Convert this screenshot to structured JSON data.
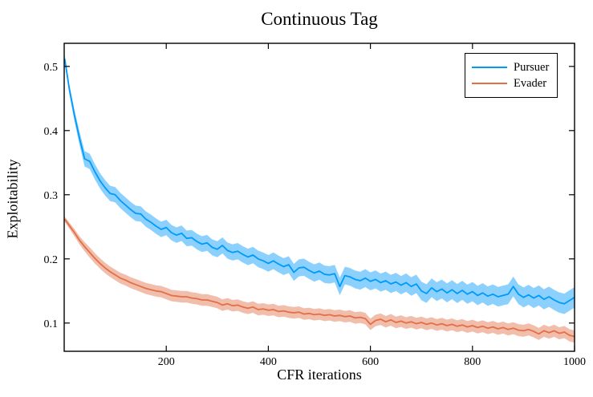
{
  "figure": {
    "title": "Continuous Tag",
    "xlabel": "CFR iterations",
    "ylabel": "Exploitability"
  },
  "legend": {
    "items": [
      {
        "label": "Pursuer",
        "color": "#009AFA"
      },
      {
        "label": "Evader",
        "color": "#E36F47"
      }
    ]
  },
  "chart_data": {
    "type": "line",
    "title": "Continuous Tag",
    "xlabel": "CFR iterations",
    "ylabel": "Exploitability",
    "xlim": [
      0,
      1000
    ],
    "ylim": [
      0.056,
      0.536
    ],
    "xticks": [
      200,
      400,
      600,
      800,
      1000
    ],
    "yticks": [
      0.1,
      0.2,
      0.3,
      0.4,
      0.5
    ],
    "grid": false,
    "background": "#FFFFFF",
    "axis_color": "#000000",
    "legend_position": "top-right",
    "x": [
      1,
      10,
      20,
      30,
      40,
      50,
      60,
      70,
      80,
      90,
      100,
      110,
      120,
      130,
      140,
      150,
      160,
      170,
      180,
      190,
      200,
      210,
      220,
      230,
      240,
      250,
      260,
      270,
      280,
      290,
      300,
      310,
      320,
      330,
      340,
      350,
      360,
      370,
      380,
      390,
      400,
      410,
      420,
      430,
      440,
      450,
      460,
      470,
      480,
      490,
      500,
      510,
      520,
      530,
      540,
      550,
      560,
      570,
      580,
      590,
      600,
      610,
      620,
      630,
      640,
      650,
      660,
      670,
      680,
      690,
      700,
      710,
      720,
      730,
      740,
      750,
      760,
      770,
      780,
      790,
      800,
      810,
      820,
      830,
      840,
      850,
      860,
      870,
      880,
      890,
      900,
      910,
      920,
      930,
      940,
      950,
      960,
      970,
      980,
      990,
      1000
    ],
    "series": [
      {
        "name": "Pursuer",
        "color": "#009AFA",
        "band_alpha": 0.45,
        "values": [
          0.512,
          0.465,
          0.424,
          0.388,
          0.356,
          0.352,
          0.336,
          0.322,
          0.311,
          0.302,
          0.3,
          0.291,
          0.284,
          0.277,
          0.271,
          0.27,
          0.262,
          0.257,
          0.251,
          0.246,
          0.249,
          0.241,
          0.237,
          0.24,
          0.232,
          0.233,
          0.227,
          0.223,
          0.225,
          0.218,
          0.215,
          0.221,
          0.213,
          0.21,
          0.212,
          0.207,
          0.203,
          0.206,
          0.2,
          0.197,
          0.193,
          0.197,
          0.192,
          0.188,
          0.191,
          0.179,
          0.186,
          0.187,
          0.182,
          0.178,
          0.181,
          0.176,
          0.175,
          0.177,
          0.157,
          0.174,
          0.172,
          0.168,
          0.166,
          0.17,
          0.165,
          0.168,
          0.163,
          0.166,
          0.161,
          0.164,
          0.159,
          0.163,
          0.157,
          0.161,
          0.15,
          0.146,
          0.155,
          0.149,
          0.153,
          0.147,
          0.152,
          0.146,
          0.151,
          0.145,
          0.149,
          0.143,
          0.147,
          0.142,
          0.145,
          0.141,
          0.143,
          0.145,
          0.157,
          0.145,
          0.14,
          0.144,
          0.139,
          0.143,
          0.137,
          0.141,
          0.136,
          0.132,
          0.13,
          0.135,
          0.14
        ],
        "band_halfwidth_anchors": [
          [
            1,
            0.006
          ],
          [
            40,
            0.012
          ],
          [
            200,
            0.012
          ],
          [
            400,
            0.013
          ],
          [
            600,
            0.014
          ],
          [
            800,
            0.015
          ],
          [
            1000,
            0.016
          ]
        ]
      },
      {
        "name": "Evader",
        "color": "#E36F47",
        "band_alpha": 0.45,
        "values": [
          0.262,
          0.252,
          0.241,
          0.229,
          0.219,
          0.21,
          0.201,
          0.193,
          0.186,
          0.18,
          0.175,
          0.17,
          0.167,
          0.163,
          0.16,
          0.157,
          0.154,
          0.152,
          0.15,
          0.149,
          0.146,
          0.143,
          0.142,
          0.141,
          0.141,
          0.139,
          0.138,
          0.136,
          0.136,
          0.134,
          0.132,
          0.128,
          0.13,
          0.127,
          0.128,
          0.125,
          0.123,
          0.125,
          0.121,
          0.122,
          0.12,
          0.121,
          0.118,
          0.119,
          0.117,
          0.116,
          0.117,
          0.114,
          0.115,
          0.113,
          0.114,
          0.112,
          0.113,
          0.111,
          0.112,
          0.11,
          0.111,
          0.108,
          0.109,
          0.107,
          0.098,
          0.104,
          0.106,
          0.102,
          0.105,
          0.101,
          0.103,
          0.1,
          0.102,
          0.099,
          0.101,
          0.098,
          0.1,
          0.097,
          0.099,
          0.096,
          0.098,
          0.095,
          0.097,
          0.094,
          0.096,
          0.093,
          0.095,
          0.092,
          0.094,
          0.091,
          0.093,
          0.09,
          0.092,
          0.089,
          0.088,
          0.09,
          0.087,
          0.083,
          0.088,
          0.085,
          0.088,
          0.084,
          0.086,
          0.081,
          0.079
        ],
        "band_halfwidth_anchors": [
          [
            1,
            0.004
          ],
          [
            50,
            0.008
          ],
          [
            200,
            0.009
          ],
          [
            600,
            0.009
          ],
          [
            1000,
            0.0095
          ]
        ]
      }
    ]
  }
}
